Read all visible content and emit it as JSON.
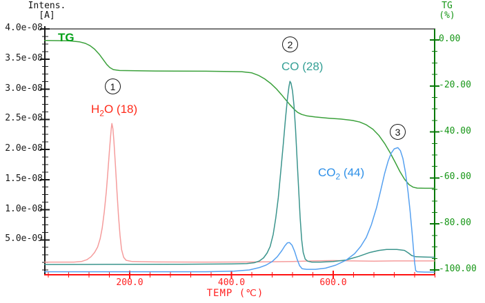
{
  "left_axis_title": {
    "line1": "Intens.",
    "line2": "[A]"
  },
  "right_axis_title": {
    "line1": "TG",
    "line2": "(%)"
  },
  "axes": {
    "left": {
      "tick_labels": [
        "4.0e-08",
        "3.5e-08",
        "3.0e-08",
        "2.5e-08",
        "2.0e-08",
        "1.5e-08",
        "1.0e-08",
        "5.0e-09"
      ],
      "color": "#1a1a1a"
    },
    "right": {
      "tick_labels": [
        "0.00",
        "-20.00",
        "-40.00",
        "-60.00",
        "-80.00",
        "-100.00"
      ],
      "color": "#067806",
      "label_color": "#169616"
    },
    "x": {
      "tick_labels": [
        "200.0",
        "400.0",
        "600.0"
      ],
      "axis_label": "TEMP (℃)",
      "color": "#ff1010",
      "label_color": "#ff2020"
    }
  },
  "annotations": {
    "step1": "1",
    "step2": "2",
    "step3": "3"
  },
  "curve_labels": {
    "tg": {
      "text": "TG",
      "color": "#00a018"
    },
    "h2o": {
      "pre": "H",
      "sub": "2",
      "post": "O (18)",
      "color": "#ff2a1a"
    },
    "co": {
      "pre": "CO",
      "sub": "",
      "post": " (28)",
      "color": "#36a096"
    },
    "co2": {
      "pre": "CO",
      "sub": "2",
      "post": " (44)",
      "color": "#2e90e8"
    }
  },
  "chart_data": {
    "type": "line",
    "xlabel": "TEMP (℃)",
    "ylabel_left": "Intens. [A]",
    "ylabel_right": "TG (%)",
    "x_range": [
      33,
      800
    ],
    "left_axis_range": [
      0,
      4e-08
    ],
    "right_axis_range": [
      -100,
      0
    ],
    "grid": false,
    "series": [
      {
        "name": "TG",
        "axis": "right",
        "color": "#3aa03a",
        "points": [
          [
            33,
            -0.2
          ],
          [
            81,
            -0.4
          ],
          [
            101,
            -0.8
          ],
          [
            113,
            -1.5
          ],
          [
            122,
            -2.5
          ],
          [
            131,
            -4.0
          ],
          [
            140,
            -6.2
          ],
          [
            148,
            -8.6
          ],
          [
            155,
            -10.7
          ],
          [
            161,
            -12.0
          ],
          [
            168,
            -12.9
          ],
          [
            180,
            -13.3
          ],
          [
            250,
            -13.5
          ],
          [
            350,
            -13.6
          ],
          [
            420,
            -13.8
          ],
          [
            440,
            -14.3
          ],
          [
            453,
            -15.4
          ],
          [
            465,
            -16.9
          ],
          [
            477,
            -18.9
          ],
          [
            488,
            -21.2
          ],
          [
            498,
            -23.7
          ],
          [
            507,
            -26.1
          ],
          [
            515,
            -28.2
          ],
          [
            523,
            -30.1
          ],
          [
            530,
            -31.5
          ],
          [
            538,
            -32.4
          ],
          [
            548,
            -33.0
          ],
          [
            565,
            -33.5
          ],
          [
            590,
            -34.0
          ],
          [
            615,
            -34.4
          ],
          [
            638,
            -35.0
          ],
          [
            652,
            -35.7
          ],
          [
            665,
            -36.9
          ],
          [
            678,
            -38.8
          ],
          [
            690,
            -41.6
          ],
          [
            701,
            -45.0
          ],
          [
            712,
            -49.1
          ],
          [
            722,
            -53.3
          ],
          [
            731,
            -57.2
          ],
          [
            740,
            -60.5
          ],
          [
            749,
            -62.9
          ],
          [
            757,
            -64.0
          ],
          [
            765,
            -64.4
          ],
          [
            780,
            -64.5
          ],
          [
            799,
            -64.5
          ]
        ]
      },
      {
        "name": "H2O (18)",
        "axis": "left",
        "color": "#f59c9c",
        "points": [
          [
            33,
            1.3e-09
          ],
          [
            90,
            1.3e-09
          ],
          [
            105,
            1.4e-09
          ],
          [
            116,
            1.7e-09
          ],
          [
            124,
            2.2e-09
          ],
          [
            131,
            2.9e-09
          ],
          [
            137,
            3.8e-09
          ],
          [
            142,
            5.2e-09
          ],
          [
            146,
            7e-09
          ],
          [
            150,
            9.6e-09
          ],
          [
            154,
            1.3e-08
          ],
          [
            157,
            1.62e-08
          ],
          [
            160,
            1.96e-08
          ],
          [
            162,
            2.18e-08
          ],
          [
            164,
            2.36e-08
          ],
          [
            165,
            2.43e-08
          ],
          [
            167,
            2.34e-08
          ],
          [
            169,
            2.14e-08
          ],
          [
            172,
            1.74e-08
          ],
          [
            175,
            1.29e-08
          ],
          [
            178,
            8.9e-09
          ],
          [
            181,
            5.7e-09
          ],
          [
            184,
            3.4e-09
          ],
          [
            188,
            2.1e-09
          ],
          [
            193,
            1.6e-09
          ],
          [
            205,
            1.4e-09
          ],
          [
            250,
            1.32e-09
          ],
          [
            350,
            1.3e-09
          ],
          [
            450,
            1.32e-09
          ],
          [
            520,
            1.4e-09
          ],
          [
            560,
            1.5e-09
          ],
          [
            600,
            1.55e-09
          ],
          [
            640,
            1.5e-09
          ],
          [
            680,
            1.45e-09
          ],
          [
            720,
            1.5e-09
          ],
          [
            799,
            1.5e-09
          ]
        ]
      },
      {
        "name": "CO (28)",
        "axis": "left",
        "color": "#3a948c",
        "points": [
          [
            33,
            9e-10
          ],
          [
            150,
            9.2e-10
          ],
          [
            300,
            9.5e-10
          ],
          [
            400,
            1e-09
          ],
          [
            430,
            1.05e-09
          ],
          [
            445,
            1.2e-09
          ],
          [
            455,
            1.5e-09
          ],
          [
            463,
            2e-09
          ],
          [
            470,
            2.8e-09
          ],
          [
            476,
            3.9e-09
          ],
          [
            482,
            5.9e-09
          ],
          [
            487,
            8.6e-09
          ],
          [
            492,
            1.2e-08
          ],
          [
            497,
            1.64e-08
          ],
          [
            502,
            2.1e-08
          ],
          [
            506,
            2.5e-08
          ],
          [
            510,
            2.84e-08
          ],
          [
            513,
            3.04e-08
          ],
          [
            515,
            3.13e-08
          ],
          [
            517,
            3.1e-08
          ],
          [
            520,
            2.97e-08
          ],
          [
            523,
            2.72e-08
          ],
          [
            526,
            2.33e-08
          ],
          [
            529,
            1.84e-08
          ],
          [
            532,
            1.34e-08
          ],
          [
            535,
            8.6e-09
          ],
          [
            538,
            5e-09
          ],
          [
            541,
            2.9e-09
          ],
          [
            545,
            1.8e-09
          ],
          [
            550,
            1.45e-09
          ],
          [
            558,
            1.3e-09
          ],
          [
            575,
            1.3e-09
          ],
          [
            600,
            1.4e-09
          ],
          [
            625,
            1.65e-09
          ],
          [
            650,
            2.25e-09
          ],
          [
            672,
            2.9e-09
          ],
          [
            690,
            3.25e-09
          ],
          [
            705,
            3.4e-09
          ],
          [
            725,
            3.4e-09
          ],
          [
            740,
            3.25e-09
          ],
          [
            748,
            2.8e-09
          ],
          [
            754,
            2.4e-09
          ],
          [
            762,
            2.2e-09
          ],
          [
            780,
            2.15e-09
          ],
          [
            799,
            2.1e-09
          ]
        ]
      },
      {
        "name": "CO2 (44)",
        "axis": "left",
        "color": "#55a0f0",
        "points": [
          [
            33,
            -3e-10
          ],
          [
            200,
            -3e-10
          ],
          [
            350,
            -3e-10
          ],
          [
            405,
            -2e-10
          ],
          [
            435,
            0.0
          ],
          [
            455,
            4e-10
          ],
          [
            468,
            8e-10
          ],
          [
            480,
            1.4e-09
          ],
          [
            490,
            2.2e-09
          ],
          [
            499,
            3.2e-09
          ],
          [
            505,
            4e-09
          ],
          [
            510,
            4.5e-09
          ],
          [
            514,
            4.55e-09
          ],
          [
            519,
            4.1e-09
          ],
          [
            524,
            3.1e-09
          ],
          [
            529,
            1.8e-09
          ],
          [
            534,
            7e-10
          ],
          [
            539,
            2e-10
          ],
          [
            548,
            1e-10
          ],
          [
            565,
            1e-10
          ],
          [
            585,
            3e-10
          ],
          [
            605,
            8e-10
          ],
          [
            625,
            1.6e-09
          ],
          [
            642,
            2.7e-09
          ],
          [
            654,
            3.9e-09
          ],
          [
            665,
            5.4e-09
          ],
          [
            675,
            7.5e-09
          ],
          [
            685,
            1.03e-08
          ],
          [
            693,
            1.31e-08
          ],
          [
            701,
            1.6e-08
          ],
          [
            708,
            1.81e-08
          ],
          [
            714,
            1.94e-08
          ],
          [
            720,
            2.01e-08
          ],
          [
            727,
            2.03e-08
          ],
          [
            732,
            1.98e-08
          ],
          [
            737,
            1.85e-08
          ],
          [
            742,
            1.62e-08
          ],
          [
            747,
            1.3e-08
          ],
          [
            751,
            9.8e-09
          ],
          [
            755,
            6.2e-09
          ],
          [
            758,
            3.2e-09
          ],
          [
            760,
            1.2e-09
          ],
          [
            762,
            -1e-10
          ],
          [
            765,
            -3e-10
          ],
          [
            780,
            -3.5e-10
          ],
          [
            799,
            -3.5e-10
          ]
        ]
      }
    ]
  },
  "frame": {
    "top_border_color": "#777777"
  }
}
